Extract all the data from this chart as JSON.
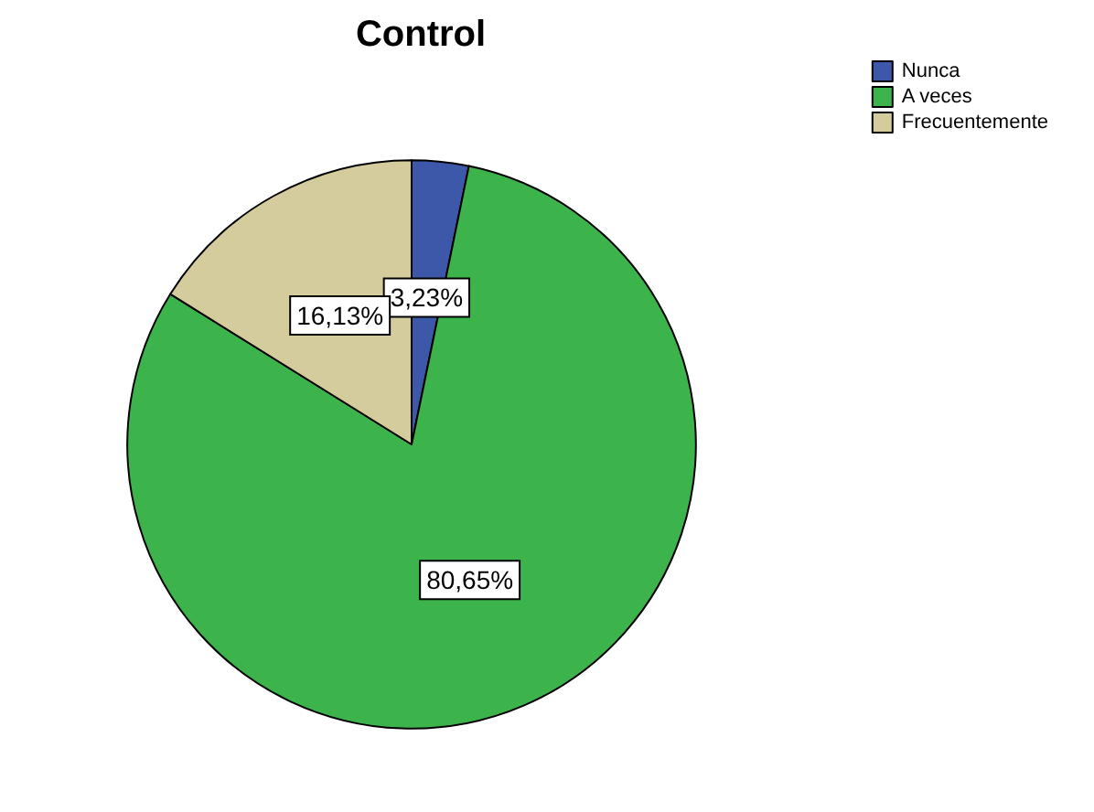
{
  "chart_data": {
    "type": "pie",
    "title": "Control",
    "categories": [
      "Nunca",
      "A veces",
      "Frecuentemente"
    ],
    "values": [
      3.23,
      80.65,
      16.13
    ],
    "colors": [
      "#3d58a8",
      "#3cb44b",
      "#d5cc9e"
    ],
    "value_labels": [
      "3,23%",
      "80,65%",
      "16,13%"
    ],
    "legend": "top right"
  }
}
